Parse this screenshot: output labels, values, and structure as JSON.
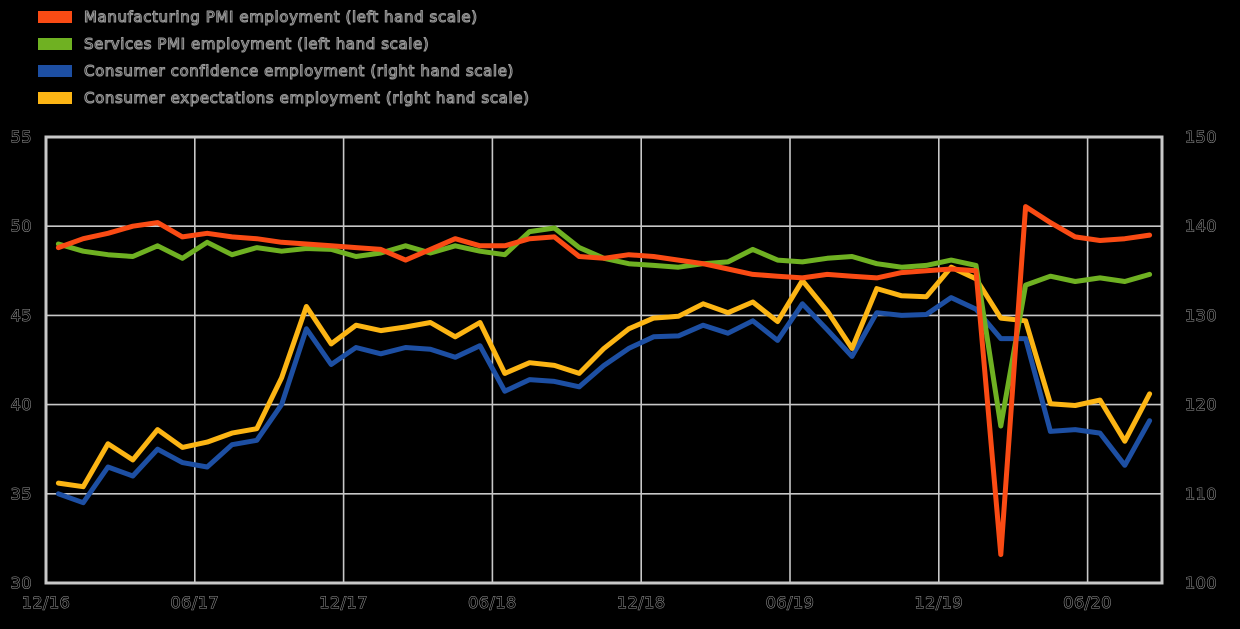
{
  "chart": {
    "background_color": "#000000",
    "grid_color": "#c8c8c8",
    "label_fill_color": "#000000",
    "label_outline_color": "#9a9a9a",
    "left_axis_ticks": [
      55,
      50,
      45,
      40,
      35,
      30
    ],
    "right_axis_ticks": [
      150,
      140,
      130,
      120,
      110,
      100
    ],
    "x_tick_labels": [
      "12/16",
      "06/17",
      "12/17",
      "06/18",
      "12/18",
      "06/19",
      "12/19",
      "06/20"
    ]
  },
  "chart_data": {
    "type": "line",
    "title": "",
    "xlabel": "",
    "ylabel_left": "",
    "ylabel_right": "",
    "grid": true,
    "legend_position": "top-left",
    "left_ylim": [
      30,
      55
    ],
    "right_ylim": [
      100,
      150
    ],
    "x_ticks_shown": [
      "12/16",
      "06/17",
      "12/17",
      "06/18",
      "12/18",
      "06/19",
      "12/19",
      "06/20"
    ],
    "x": [
      "12/16",
      "01/17",
      "02/17",
      "03/17",
      "04/17",
      "05/17",
      "06/17",
      "07/17",
      "08/17",
      "09/17",
      "10/17",
      "11/17",
      "12/17",
      "01/18",
      "02/18",
      "03/18",
      "04/18",
      "05/18",
      "06/18",
      "07/18",
      "08/18",
      "09/18",
      "10/18",
      "11/18",
      "12/18",
      "01/19",
      "02/19",
      "03/19",
      "04/19",
      "05/19",
      "06/19",
      "07/19",
      "08/19",
      "09/19",
      "10/19",
      "11/19",
      "12/19",
      "01/20",
      "02/20",
      "03/20",
      "04/20",
      "05/20",
      "06/20",
      "07/20",
      "08/20"
    ],
    "series": [
      {
        "id": "manufacturing-pmi",
        "name": "Manufacturing PMI employment (left hand scale)",
        "axis": "left",
        "color": "#fa4b14",
        "values": [
          48.8,
          49.3,
          49.6,
          50.0,
          50.2,
          49.4,
          49.6,
          49.4,
          49.3,
          49.1,
          49.0,
          48.9,
          48.8,
          48.7,
          48.1,
          48.7,
          49.3,
          48.9,
          48.9,
          49.3,
          49.4,
          48.3,
          48.2,
          48.4,
          48.3,
          48.1,
          47.9,
          47.6,
          47.3,
          47.2,
          47.1,
          47.3,
          47.2,
          47.1,
          47.4,
          47.5,
          47.6,
          47.5,
          31.6,
          51.1,
          50.2,
          49.4,
          49.2,
          49.3,
          49.5
        ]
      },
      {
        "id": "services-pmi",
        "name": "Services PMI employment (left hand scale)",
        "axis": "left",
        "color": "#6fb122",
        "values": [
          49.0,
          48.6,
          48.4,
          48.3,
          48.9,
          48.2,
          49.1,
          48.4,
          48.8,
          48.6,
          48.75,
          48.7,
          48.3,
          48.5,
          48.9,
          48.5,
          48.9,
          48.6,
          48.4,
          49.7,
          49.9,
          48.8,
          48.2,
          47.9,
          47.8,
          47.7,
          47.9,
          48.0,
          48.7,
          48.1,
          48.0,
          48.2,
          48.3,
          47.9,
          47.7,
          47.8,
          48.1,
          47.8,
          38.8,
          46.7,
          47.2,
          46.9,
          47.1,
          46.9,
          47.3
        ]
      },
      {
        "id": "consumer-confidence",
        "name": "Consumer confidence employment (right hand scale)",
        "axis": "right",
        "color": "#1d4fa3",
        "values": [
          110,
          109,
          113,
          112,
          115,
          113.5,
          113,
          115.5,
          116,
          120,
          128.5,
          124.5,
          126.4,
          125.7,
          126.4,
          126.2,
          125.3,
          126.6,
          121.5,
          122.8,
          122.6,
          122.0,
          124.4,
          126.3,
          127.6,
          127.7,
          128.9,
          128.0,
          129.4,
          127.2,
          131.3,
          128.4,
          125.4,
          130.3,
          130.0,
          130.1,
          132.0,
          130.7,
          127.4,
          127.4,
          117.0,
          117.2,
          116.8,
          113.2,
          118.2
        ]
      },
      {
        "id": "consumer-expectations",
        "name": "Consumer expectations employment (right hand scale)",
        "axis": "right",
        "color": "#fcb514",
        "values": [
          111.2,
          110.8,
          115.6,
          113.8,
          117.2,
          115.2,
          115.8,
          116.8,
          117.3,
          123,
          131,
          126.8,
          128.9,
          128.3,
          128.7,
          129.2,
          127.6,
          129.2,
          123.5,
          124.7,
          124.4,
          123.5,
          126.3,
          128.5,
          129.7,
          129.9,
          131.3,
          130.3,
          131.5,
          129.3,
          133.9,
          130.5,
          126.3,
          133.0,
          132.2,
          132.1,
          135.4,
          134.1,
          129.7,
          129.4,
          120.1,
          119.9,
          120.5,
          115.9,
          121.2
        ]
      }
    ]
  }
}
